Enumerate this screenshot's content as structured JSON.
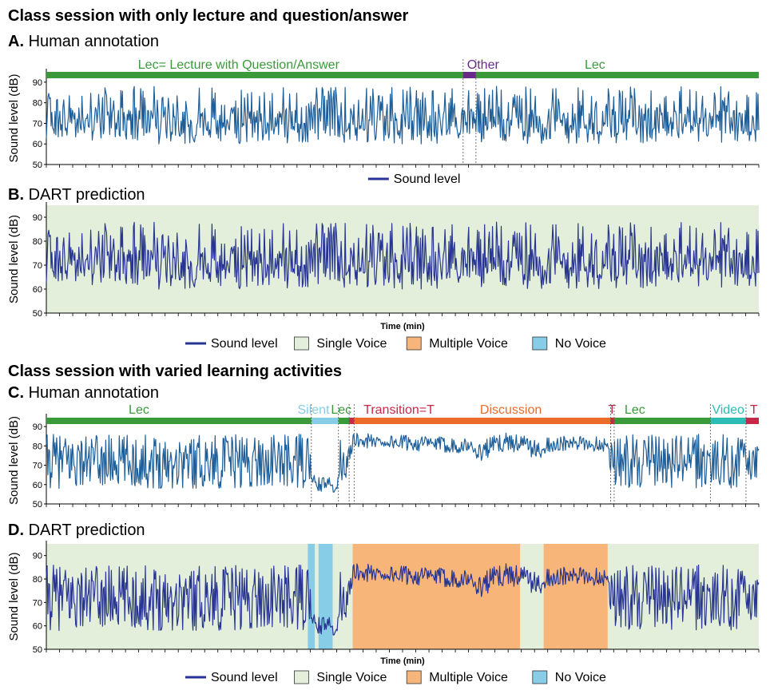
{
  "sections": [
    {
      "title": "Class session with only lecture and question/answer"
    },
    {
      "title": "Class session with varied learning activities"
    }
  ],
  "colors": {
    "sound": "#1f5f99",
    "sound_dart": "#283593",
    "single_voice": "#e3efdb",
    "multiple_voice": "#f7b57a",
    "no_voice": "#87cde7",
    "lec": "#3a9a3a",
    "other": "#6a2a8a",
    "silent": "#87cde7",
    "transition": "#c62848",
    "discussion": "#ec6b28",
    "video": "#2cbcb4"
  },
  "legends": {
    "A": [
      {
        "label": "Sound level",
        "type": "line",
        "color": "sound_dart"
      }
    ],
    "BD": [
      {
        "label": "Sound level",
        "type": "line",
        "color": "sound_dart"
      },
      {
        "label": "Single Voice",
        "type": "box",
        "color": "single_voice"
      },
      {
        "label": "Multiple Voice",
        "type": "box",
        "color": "multiple_voice"
      },
      {
        "label": "No Voice",
        "type": "box",
        "color": "no_voice"
      }
    ]
  },
  "chart_data": [
    {
      "panel": "A",
      "type": "line",
      "panel_letter": "A.",
      "panel_title": "Human annotation",
      "ylabel": "Sound level (dB)",
      "xlabel": "",
      "ylim": [
        50,
        95
      ],
      "yticks": [
        50,
        60,
        70,
        80,
        90
      ],
      "x_span": [
        0,
        1
      ],
      "series": [
        {
          "name": "Sound level",
          "style": "lecture"
        }
      ],
      "annotation_bar": [
        {
          "start": 0.0,
          "end": 0.585,
          "color": "lec"
        },
        {
          "start": 0.585,
          "end": 0.603,
          "color": "other"
        },
        {
          "start": 0.603,
          "end": 1.0,
          "color": "lec"
        }
      ],
      "annotation_labels": [
        {
          "text": "Lec= Lecture with Question/Answer",
          "at": 0.27,
          "color": "lec"
        },
        {
          "text": "Other",
          "at": 0.613,
          "color": "other"
        },
        {
          "text": "Lec",
          "at": 0.77,
          "color": "lec"
        }
      ],
      "boundaries": [
        0.585,
        0.603
      ]
    },
    {
      "panel": "B",
      "type": "area",
      "panel_letter": "B.",
      "panel_title": "DART prediction",
      "ylabel": "Sound level (dB)",
      "xlabel": "Time (min)",
      "ylim": [
        50,
        95
      ],
      "yticks": [
        50,
        60,
        70,
        80,
        90
      ],
      "x_span": [
        0,
        1
      ],
      "series": [
        {
          "name": "Sound level",
          "style": "lecture"
        }
      ],
      "regions": [
        {
          "start": 0.0,
          "end": 1.0,
          "class": "single_voice"
        }
      ]
    },
    {
      "panel": "C",
      "type": "line",
      "panel_letter": "C.",
      "panel_title": "Human annotation",
      "ylabel": "Sound level (dB)",
      "xlabel": "",
      "ylim": [
        50,
        95
      ],
      "yticks": [
        50,
        60,
        70,
        80,
        90
      ],
      "x_span": [
        0,
        1
      ],
      "series": [
        {
          "name": "Sound level",
          "style": "varied"
        }
      ],
      "annotation_bar": [
        {
          "start": 0.0,
          "end": 0.372,
          "color": "lec"
        },
        {
          "start": 0.372,
          "end": 0.41,
          "color": "silent"
        },
        {
          "start": 0.41,
          "end": 0.425,
          "color": "lec"
        },
        {
          "start": 0.425,
          "end": 0.432,
          "color": "transition"
        },
        {
          "start": 0.432,
          "end": 0.792,
          "color": "discussion"
        },
        {
          "start": 0.792,
          "end": 0.797,
          "color": "transition"
        },
        {
          "start": 0.797,
          "end": 0.932,
          "color": "lec"
        },
        {
          "start": 0.932,
          "end": 0.982,
          "color": "video"
        },
        {
          "start": 0.982,
          "end": 1.0,
          "color": "transition"
        }
      ],
      "annotation_labels": [
        {
          "text": "Lec",
          "at": 0.13,
          "color": "lec"
        },
        {
          "text": "Silent",
          "at": 0.375,
          "color": "silent"
        },
        {
          "text": "Lec",
          "at": 0.414,
          "color": "lec"
        },
        {
          "text": "Transition=T",
          "at": 0.495,
          "color": "transition"
        },
        {
          "text": "Discussion",
          "at": 0.652,
          "color": "discussion"
        },
        {
          "text": "T",
          "at": 0.794,
          "color": "transition"
        },
        {
          "text": "Lec",
          "at": 0.826,
          "color": "lec"
        },
        {
          "text": "Video",
          "at": 0.957,
          "color": "video"
        },
        {
          "text": "T",
          "at": 0.993,
          "color": "transition"
        }
      ],
      "boundaries": [
        0.372,
        0.41,
        0.425,
        0.432,
        0.792,
        0.797,
        0.932,
        0.982
      ]
    },
    {
      "panel": "D",
      "type": "area",
      "panel_letter": "D.",
      "panel_title": "DART prediction",
      "ylabel": "Sound level (dB)",
      "xlabel": "Time (min)",
      "ylim": [
        50,
        95
      ],
      "yticks": [
        50,
        60,
        70,
        80,
        90
      ],
      "x_span": [
        0,
        1
      ],
      "series": [
        {
          "name": "Sound level",
          "style": "varied"
        }
      ],
      "regions": [
        {
          "start": 0.0,
          "end": 0.367,
          "class": "single_voice"
        },
        {
          "start": 0.367,
          "end": 0.377,
          "class": "no_voice"
        },
        {
          "start": 0.377,
          "end": 0.382,
          "class": "single_voice"
        },
        {
          "start": 0.382,
          "end": 0.402,
          "class": "no_voice"
        },
        {
          "start": 0.402,
          "end": 0.43,
          "class": "single_voice"
        },
        {
          "start": 0.43,
          "end": 0.665,
          "class": "multiple_voice"
        },
        {
          "start": 0.665,
          "end": 0.698,
          "class": "single_voice"
        },
        {
          "start": 0.698,
          "end": 0.788,
          "class": "multiple_voice"
        },
        {
          "start": 0.788,
          "end": 1.0,
          "class": "single_voice"
        }
      ]
    }
  ]
}
